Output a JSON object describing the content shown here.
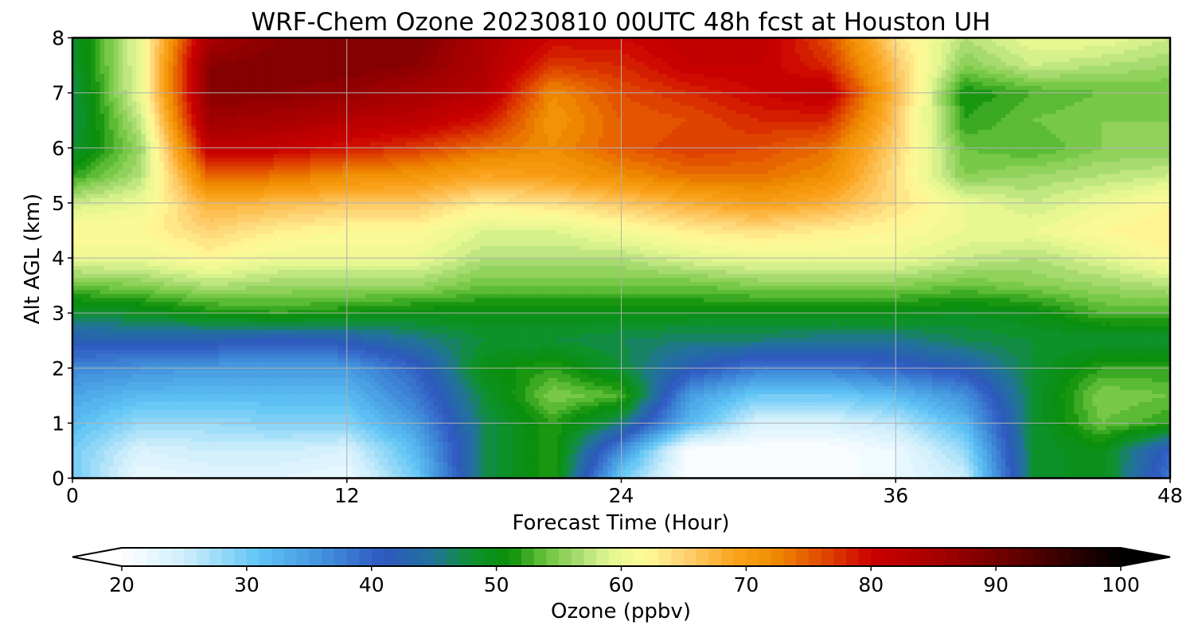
{
  "chart_data": {
    "type": "heatmap",
    "title": "WRF-Chem Ozone  20230810 00UTC 48h fcst at Houston UH",
    "xlabel": "Forecast Time (Hour)",
    "ylabel": "Alt AGL (km)",
    "xlim": [
      0,
      48
    ],
    "ylim": [
      0,
      8
    ],
    "xticks": [
      0,
      12,
      24,
      36,
      48
    ],
    "yticks": [
      0,
      1,
      2,
      3,
      4,
      5,
      6,
      7,
      8
    ],
    "grid": true,
    "x": [
      0,
      3,
      6,
      9,
      12,
      15,
      18,
      21,
      24,
      27,
      30,
      33,
      36,
      39,
      42,
      45,
      48
    ],
    "y": [
      0,
      0.5,
      1,
      1.5,
      2,
      2.5,
      3,
      3.5,
      4,
      4.5,
      5,
      5.5,
      6,
      6.5,
      7,
      7.5,
      8
    ],
    "z": [
      [
        30,
        22,
        23,
        23,
        22,
        30,
        47,
        52,
        30,
        20,
        20,
        20,
        22,
        25,
        48,
        50,
        38
      ],
      [
        30,
        24,
        25,
        25,
        24,
        32,
        47,
        52,
        36,
        20,
        20,
        20,
        22,
        28,
        48,
        50,
        40
      ],
      [
        32,
        28,
        28,
        29,
        29,
        35,
        47,
        52,
        46,
        32,
        24,
        24,
        26,
        32,
        48,
        54,
        52
      ],
      [
        34,
        32,
        32,
        32,
        32,
        38,
        48,
        55,
        53,
        35,
        30,
        30,
        32,
        36,
        48,
        55,
        54
      ],
      [
        37,
        36,
        35,
        35,
        35,
        40,
        50,
        52,
        48,
        42,
        38,
        38,
        40,
        42,
        48,
        52,
        52
      ],
      [
        42,
        42,
        42,
        41,
        42,
        45,
        48,
        48,
        47,
        46,
        46,
        45,
        45,
        47,
        48,
        48,
        48
      ],
      [
        48,
        49,
        51,
        52,
        51,
        50,
        50,
        50,
        50,
        50,
        50,
        50,
        50,
        49,
        50,
        53,
        53
      ],
      [
        54,
        55,
        57,
        56,
        56,
        56,
        54,
        54,
        54,
        54,
        55,
        55,
        55,
        54,
        55,
        56,
        57
      ],
      [
        60,
        60,
        62,
        60,
        60,
        60,
        57,
        57,
        57,
        59,
        60,
        60,
        60,
        58,
        57,
        59,
        62
      ],
      [
        62,
        62,
        65,
        63,
        62,
        62,
        59,
        59,
        61,
        63,
        64,
        63,
        62,
        60,
        60,
        62,
        63
      ],
      [
        58,
        60,
        68,
        67,
        66,
        66,
        63,
        64,
        66,
        68,
        70,
        68,
        64,
        60,
        58,
        60,
        62
      ],
      [
        52,
        57,
        75,
        74,
        72,
        71,
        69,
        70,
        72,
        74,
        74,
        72,
        64,
        55,
        56,
        57,
        58
      ],
      [
        48,
        56,
        82,
        81,
        79,
        77,
        74,
        72,
        75,
        77,
        76,
        74,
        65,
        54,
        53,
        55,
        55
      ],
      [
        47,
        58,
        86,
        85,
        83,
        82,
        79,
        71,
        75,
        76,
        78,
        78,
        66,
        52,
        54,
        55,
        55
      ],
      [
        47,
        60,
        88,
        88,
        87,
        85,
        83,
        72,
        76,
        78,
        80,
        82,
        67,
        51,
        53,
        54,
        54
      ],
      [
        48,
        60,
        88,
        89,
        89,
        88,
        84,
        77,
        78,
        81,
        81,
        78,
        66,
        55,
        58,
        57,
        56
      ],
      [
        48,
        60,
        85,
        88,
        89,
        89,
        84,
        80,
        80,
        82,
        82,
        76,
        64,
        57,
        60,
        60,
        58
      ]
    ],
    "colorbar": {
      "label": "Ozone  (ppbv)",
      "range": [
        20,
        100
      ],
      "step": 1,
      "ticks": [
        20,
        30,
        40,
        50,
        60,
        70,
        80,
        90,
        100
      ],
      "extend": "both",
      "colormap_stops": [
        {
          "v": 20,
          "c": "#ffffff"
        },
        {
          "v": 25,
          "c": "#cfeefc"
        },
        {
          "v": 31,
          "c": "#5fc4f5"
        },
        {
          "v": 36,
          "c": "#4292dd"
        },
        {
          "v": 41,
          "c": "#2f58c0"
        },
        {
          "v": 45,
          "c": "#21739a"
        },
        {
          "v": 48,
          "c": "#0e9130"
        },
        {
          "v": 51,
          "c": "#0a8e08"
        },
        {
          "v": 54,
          "c": "#6cc43e"
        },
        {
          "v": 57,
          "c": "#b3e07a"
        },
        {
          "v": 59,
          "c": "#e2f690"
        },
        {
          "v": 62,
          "c": "#fffa98"
        },
        {
          "v": 65,
          "c": "#fed274"
        },
        {
          "v": 69,
          "c": "#fba31d"
        },
        {
          "v": 72,
          "c": "#f08f00"
        },
        {
          "v": 76,
          "c": "#e24c00"
        },
        {
          "v": 80,
          "c": "#cc0000"
        },
        {
          "v": 86,
          "c": "#a00000"
        },
        {
          "v": 92,
          "c": "#5e0000"
        },
        {
          "v": 100,
          "c": "#000000"
        }
      ]
    }
  }
}
